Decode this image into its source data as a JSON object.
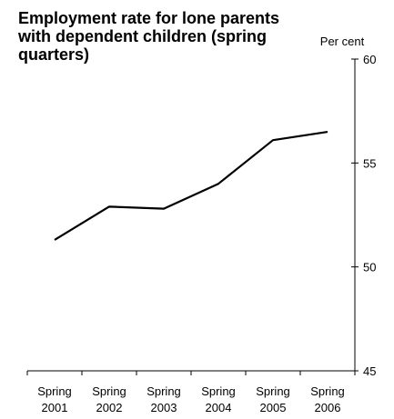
{
  "chart_data": {
    "type": "line",
    "title": "Employment rate for lone parents with dependent children (spring quarters)",
    "unit_label": "Per cent",
    "categories": [
      "Spring 2001",
      "Spring 2002",
      "Spring 2003",
      "Spring 2004",
      "Spring 2005",
      "Spring 2006"
    ],
    "x_tick_lines": [
      [
        "Spring",
        "2001"
      ],
      [
        "Spring",
        "2002"
      ],
      [
        "Spring",
        "2003"
      ],
      [
        "Spring",
        "2004"
      ],
      [
        "Spring",
        "2005"
      ],
      [
        "Spring",
        "2006"
      ]
    ],
    "series": [
      {
        "values": [
          51.3,
          52.9,
          52.8,
          54.0,
          56.1,
          56.5
        ]
      }
    ],
    "ylim": [
      45,
      60
    ],
    "y_ticks": [
      45,
      50,
      55,
      60
    ],
    "y_axis_position": "right",
    "grid": false,
    "line_color": "#000000"
  }
}
